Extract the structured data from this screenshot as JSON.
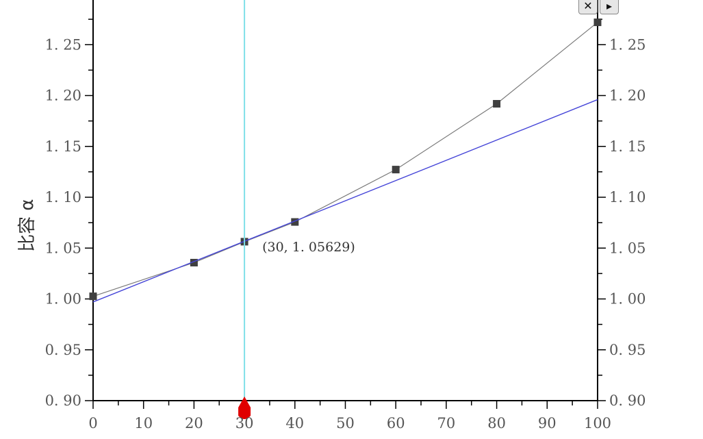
{
  "chart_data": {
    "type": "line",
    "xlabel": "",
    "ylabel": "比容 α",
    "xlim": [
      0,
      100
    ],
    "ylim": [
      0.9,
      1.3
    ],
    "x_ticks": [
      "0",
      "10",
      "20",
      "30",
      "40",
      "50",
      "60",
      "70",
      "80",
      "90",
      "100"
    ],
    "y_ticks": [
      "0.90",
      "0.95",
      "1.00",
      "1.05",
      "1.10",
      "1.15",
      "1.20",
      "1.25"
    ],
    "series": [
      {
        "color": "#7a7a7a",
        "marker": "square",
        "marker_color": "#404040",
        "x": [
          0,
          20,
          30,
          40,
          60,
          80,
          100
        ],
        "y": [
          1.0026,
          1.0357,
          1.05629,
          1.0757,
          1.1272,
          1.1919,
          1.272
        ]
      },
      {
        "color": "#4646d8",
        "x": [
          0,
          100
        ],
        "y": [
          0.997,
          1.196
        ]
      }
    ],
    "cursor": {
      "x": 30,
      "color": "#7fe0e8",
      "marker_color": "#e00000"
    },
    "annotation": {
      "text": "(30, 1.05629)",
      "x": 30,
      "y": 1.05629
    }
  },
  "controls": {
    "close_label": "✕",
    "next_label": "▸"
  }
}
